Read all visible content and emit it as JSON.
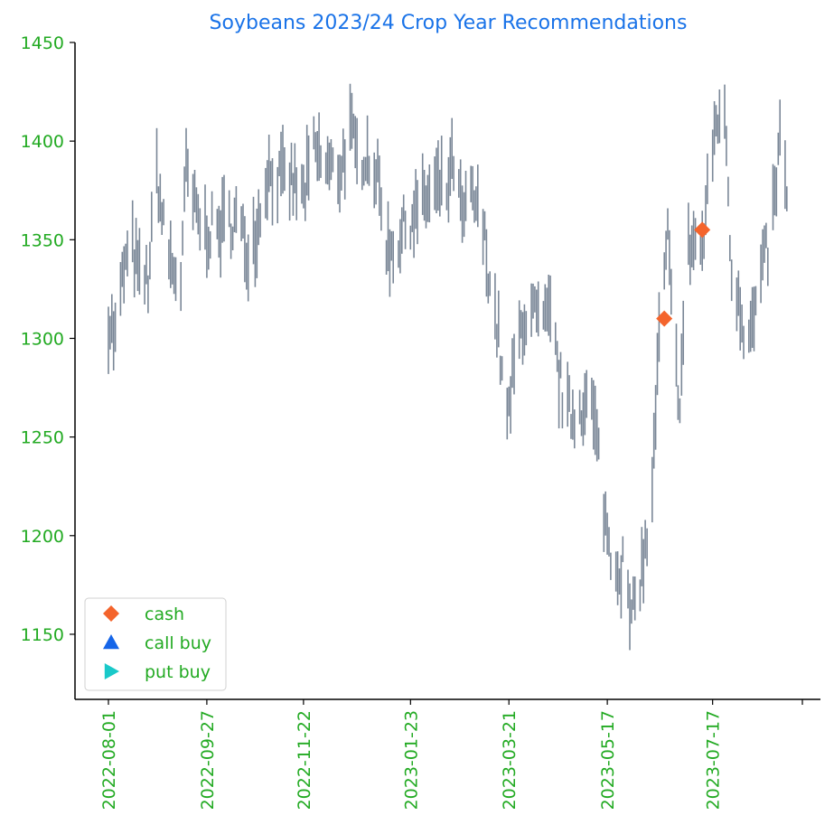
{
  "chart_data": {
    "type": "bar",
    "subtype": "ohlc-range",
    "title": "Soybeans 2023/24 Crop Year Recommendations",
    "xlabel": "",
    "ylabel": "",
    "x_axis_type": "date",
    "xlim": [
      "2022-07-23",
      "2023-09-07"
    ],
    "ylim": [
      1117,
      1450
    ],
    "y_ticks": [
      1150,
      1200,
      1250,
      1300,
      1350,
      1400,
      1450
    ],
    "x_ticks": [
      "2022-08-01",
      "2022-09-27",
      "2022-11-22",
      "2023-01-23",
      "2023-03-21",
      "2023-05-17",
      "2023-07-17"
    ],
    "grid": false,
    "legend_position": "lower-left",
    "colors": {
      "title": "#1a73e8",
      "ticks": "#22aa22",
      "bars": "#7a8797",
      "cash": "#f4642c",
      "call_buy": "#1565e8",
      "put_buy": "#19c9c9",
      "axis": "#000000"
    },
    "price_path": [
      [
        "2022-08-01",
        1310
      ],
      [
        "2022-08-05",
        1300
      ],
      [
        "2022-08-10",
        1335
      ],
      [
        "2022-08-15",
        1345
      ],
      [
        "2022-08-19",
        1330
      ],
      [
        "2022-08-24",
        1330
      ],
      [
        "2022-08-29",
        1385
      ],
      [
        "2022-09-02",
        1355
      ],
      [
        "2022-09-07",
        1335
      ],
      [
        "2022-09-12",
        1330
      ],
      [
        "2022-09-15",
        1385
      ],
      [
        "2022-09-20",
        1365
      ],
      [
        "2022-09-25",
        1355
      ],
      [
        "2022-09-30",
        1355
      ],
      [
        "2022-10-04",
        1355
      ],
      [
        "2022-10-10",
        1360
      ],
      [
        "2022-10-15",
        1360
      ],
      [
        "2022-10-20",
        1345
      ],
      [
        "2022-10-26",
        1355
      ],
      [
        "2022-11-01",
        1385
      ],
      [
        "2022-11-08",
        1380
      ],
      [
        "2022-11-15",
        1380
      ],
      [
        "2022-11-22",
        1372
      ],
      [
        "2022-11-28",
        1395
      ],
      [
        "2022-12-02",
        1390
      ],
      [
        "2022-12-08",
        1385
      ],
      [
        "2022-12-13",
        1385
      ],
      [
        "2022-12-19",
        1405
      ],
      [
        "2022-12-23",
        1390
      ],
      [
        "2022-12-28",
        1395
      ],
      [
        "2023-01-03",
        1385
      ],
      [
        "2023-01-10",
        1345
      ],
      [
        "2023-01-16",
        1350
      ],
      [
        "2023-01-23",
        1362
      ],
      [
        "2023-01-30",
        1368
      ],
      [
        "2023-02-06",
        1375
      ],
      [
        "2023-02-13",
        1375
      ],
      [
        "2023-02-17",
        1390
      ],
      [
        "2023-02-22",
        1360
      ],
      [
        "2023-02-28",
        1372
      ],
      [
        "2023-03-06",
        1355
      ],
      [
        "2023-03-10",
        1330
      ],
      [
        "2023-03-15",
        1300
      ],
      [
        "2023-03-20",
        1255
      ],
      [
        "2023-03-24",
        1285
      ],
      [
        "2023-03-29",
        1310
      ],
      [
        "2023-04-04",
        1312
      ],
      [
        "2023-04-10",
        1305
      ],
      [
        "2023-04-14",
        1310
      ],
      [
        "2023-04-19",
        1280
      ],
      [
        "2023-04-24",
        1262
      ],
      [
        "2023-04-28",
        1262
      ],
      [
        "2023-05-03",
        1268
      ],
      [
        "2023-05-08",
        1265
      ],
      [
        "2023-05-12",
        1240
      ],
      [
        "2023-05-17",
        1200
      ],
      [
        "2023-05-22",
        1185
      ],
      [
        "2023-05-26",
        1185
      ],
      [
        "2023-05-31",
        1155
      ],
      [
        "2023-06-05",
        1180
      ],
      [
        "2023-06-09",
        1195
      ],
      [
        "2023-06-13",
        1240
      ],
      [
        "2023-06-16",
        1300
      ],
      [
        "2023-06-21",
        1350
      ],
      [
        "2023-06-24",
        1300
      ],
      [
        "2023-06-28",
        1270
      ],
      [
        "2023-07-03",
        1345
      ],
      [
        "2023-07-07",
        1350
      ],
      [
        "2023-07-11",
        1345
      ],
      [
        "2023-07-15",
        1380
      ],
      [
        "2023-07-18",
        1405
      ],
      [
        "2023-07-22",
        1420
      ],
      [
        "2023-07-25",
        1400
      ],
      [
        "2023-07-28",
        1330
      ],
      [
        "2023-08-01",
        1325
      ],
      [
        "2023-08-05",
        1300
      ],
      [
        "2023-08-09",
        1305
      ],
      [
        "2023-08-14",
        1330
      ],
      [
        "2023-08-18",
        1345
      ],
      [
        "2023-08-22",
        1370
      ],
      [
        "2023-08-25",
        1400
      ],
      [
        "2023-08-29",
        1375
      ]
    ],
    "range_half_height": 12,
    "markers": {
      "cash": [
        {
          "x": "2023-06-19",
          "y": 1310
        },
        {
          "x": "2023-07-11",
          "y": 1355
        }
      ],
      "call_buy": [],
      "put_buy": []
    },
    "legend": [
      {
        "label": "cash",
        "marker": "diamond",
        "color_key": "cash"
      },
      {
        "label": "call buy",
        "marker": "triangle-up",
        "color_key": "call_buy"
      },
      {
        "label": "put buy",
        "marker": "triangle-right",
        "color_key": "put_buy"
      }
    ]
  }
}
